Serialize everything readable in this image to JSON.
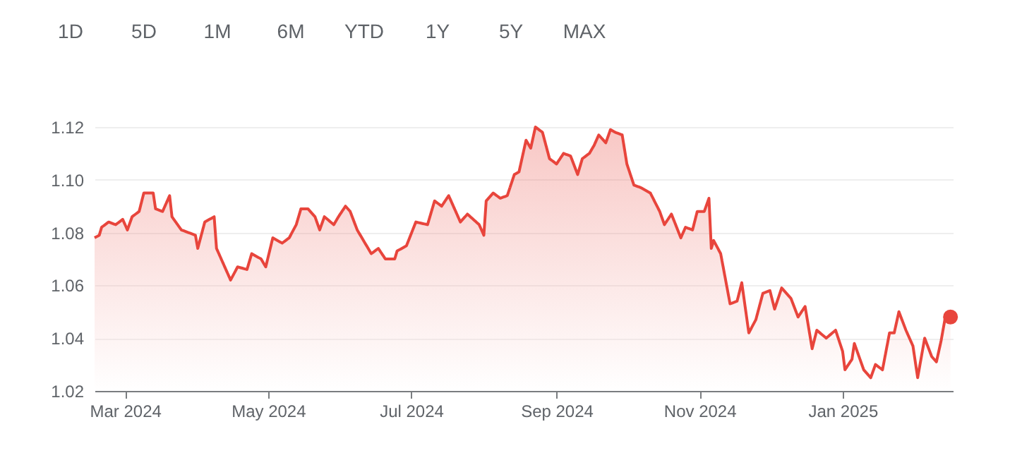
{
  "chart_data": {
    "type": "area",
    "annotations": [
      "1D",
      "5D",
      "1M",
      "6M",
      "YTD",
      "1Y",
      "5Y",
      "MAX"
    ],
    "xlim": [
      "2024-02-17",
      "2025-02-17"
    ],
    "xticks": [
      {
        "value": "2024-03-01",
        "label": "Mar 2024"
      },
      {
        "value": "2024-05-01",
        "label": "May 2024"
      },
      {
        "value": "2024-07-01",
        "label": "Jul 2024"
      },
      {
        "value": "2024-09-01",
        "label": "Sep 2024"
      },
      {
        "value": "2024-11-01",
        "label": "Nov 2024"
      },
      {
        "value": "2025-01-01",
        "label": "Jan 2025"
      }
    ],
    "ylim": [
      1.02,
      1.12
    ],
    "yticks": [
      {
        "value": 1.02,
        "label": "1.02"
      },
      {
        "value": 1.04,
        "label": "1.04"
      },
      {
        "value": 1.06,
        "label": "1.06"
      },
      {
        "value": 1.08,
        "label": "1.08"
      },
      {
        "value": 1.1,
        "label": "1.10"
      },
      {
        "value": 1.12,
        "label": "1.12"
      }
    ],
    "grid": "y",
    "legend": false,
    "marker": "none",
    "line_style": "solid",
    "series": [
      {
        "color": "#e8453c",
        "x": [
          "2024-02-17",
          "2024-02-19",
          "2024-02-20",
          "2024-02-23",
          "2024-02-26",
          "2024-02-29",
          "2024-03-02",
          "2024-03-04",
          "2024-03-07",
          "2024-03-09",
          "2024-03-13",
          "2024-03-14",
          "2024-03-17",
          "2024-03-20",
          "2024-03-21",
          "2024-03-25",
          "2024-03-28",
          "2024-03-31",
          "2024-04-01",
          "2024-04-04",
          "2024-04-08",
          "2024-04-09",
          "2024-04-12",
          "2024-04-15",
          "2024-04-18",
          "2024-04-22",
          "2024-04-24",
          "2024-04-28",
          "2024-04-30",
          "2024-05-03",
          "2024-05-07",
          "2024-05-10",
          "2024-05-13",
          "2024-05-15",
          "2024-05-18",
          "2024-05-21",
          "2024-05-23",
          "2024-05-25",
          "2024-05-29",
          "2024-05-31",
          "2024-06-03",
          "2024-06-05",
          "2024-06-08",
          "2024-06-12",
          "2024-06-14",
          "2024-06-17",
          "2024-06-20",
          "2024-06-24",
          "2024-06-25",
          "2024-06-29",
          "2024-07-03",
          "2024-07-08",
          "2024-07-11",
          "2024-07-14",
          "2024-07-17",
          "2024-07-22",
          "2024-07-25",
          "2024-07-30",
          "2024-08-01",
          "2024-08-02",
          "2024-08-05",
          "2024-08-08",
          "2024-08-11",
          "2024-08-14",
          "2024-08-16",
          "2024-08-19",
          "2024-08-21",
          "2024-08-23",
          "2024-08-26",
          "2024-08-29",
          "2024-09-01",
          "2024-09-04",
          "2024-09-07",
          "2024-09-10",
          "2024-09-12",
          "2024-09-15",
          "2024-09-17",
          "2024-09-19",
          "2024-09-22",
          "2024-09-24",
          "2024-09-26",
          "2024-09-29",
          "2024-10-01",
          "2024-10-04",
          "2024-10-07",
          "2024-10-11",
          "2024-10-15",
          "2024-10-17",
          "2024-10-20",
          "2024-10-24",
          "2024-10-26",
          "2024-10-29",
          "2024-10-31",
          "2024-11-03",
          "2024-11-05",
          "2024-11-06",
          "2024-11-07",
          "2024-11-10",
          "2024-11-14",
          "2024-11-17",
          "2024-11-19",
          "2024-11-22",
          "2024-11-25",
          "2024-11-28",
          "2024-12-01",
          "2024-12-03",
          "2024-12-06",
          "2024-12-10",
          "2024-12-13",
          "2024-12-16",
          "2024-12-19",
          "2024-12-21",
          "2024-12-25",
          "2024-12-29",
          "2025-01-01",
          "2025-01-02",
          "2025-01-05",
          "2025-01-06",
          "2025-01-10",
          "2025-01-13",
          "2025-01-15",
          "2025-01-18",
          "2025-01-21",
          "2025-01-23",
          "2025-01-25",
          "2025-01-28",
          "2025-01-31",
          "2025-02-02",
          "2025-02-05",
          "2025-02-08",
          "2025-02-10",
          "2025-02-12",
          "2025-02-14",
          "2025-02-16"
        ],
        "values": [
          1.078,
          1.079,
          1.082,
          1.084,
          1.083,
          1.085,
          1.081,
          1.086,
          1.088,
          1.095,
          1.095,
          1.089,
          1.088,
          1.094,
          1.086,
          1.081,
          1.08,
          1.079,
          1.074,
          1.084,
          1.086,
          1.074,
          1.068,
          1.062,
          1.067,
          1.066,
          1.072,
          1.07,
          1.067,
          1.078,
          1.076,
          1.078,
          1.083,
          1.089,
          1.089,
          1.086,
          1.081,
          1.086,
          1.083,
          1.086,
          1.09,
          1.088,
          1.081,
          1.075,
          1.072,
          1.074,
          1.07,
          1.07,
          1.073,
          1.075,
          1.084,
          1.083,
          1.092,
          1.09,
          1.094,
          1.084,
          1.087,
          1.083,
          1.079,
          1.092,
          1.095,
          1.093,
          1.094,
          1.102,
          1.103,
          1.115,
          1.112,
          1.12,
          1.118,
          1.108,
          1.106,
          1.11,
          1.109,
          1.102,
          1.108,
          1.11,
          1.113,
          1.117,
          1.114,
          1.119,
          1.118,
          1.117,
          1.106,
          1.098,
          1.097,
          1.095,
          1.088,
          1.083,
          1.087,
          1.078,
          1.082,
          1.081,
          1.088,
          1.088,
          1.093,
          1.074,
          1.077,
          1.072,
          1.053,
          1.054,
          1.061,
          1.042,
          1.047,
          1.057,
          1.058,
          1.051,
          1.059,
          1.055,
          1.048,
          1.052,
          1.036,
          1.043,
          1.04,
          1.043,
          1.035,
          1.028,
          1.032,
          1.038,
          1.028,
          1.025,
          1.03,
          1.028,
          1.042,
          1.042,
          1.05,
          1.043,
          1.037,
          1.025,
          1.04,
          1.033,
          1.031,
          1.039,
          1.049,
          1.048
        ]
      },
      {
        "type": "scatter",
        "color": "#e8453c",
        "marker": "circle",
        "x": [
          "2025-02-16"
        ],
        "values": [
          1.048
        ]
      }
    ]
  }
}
